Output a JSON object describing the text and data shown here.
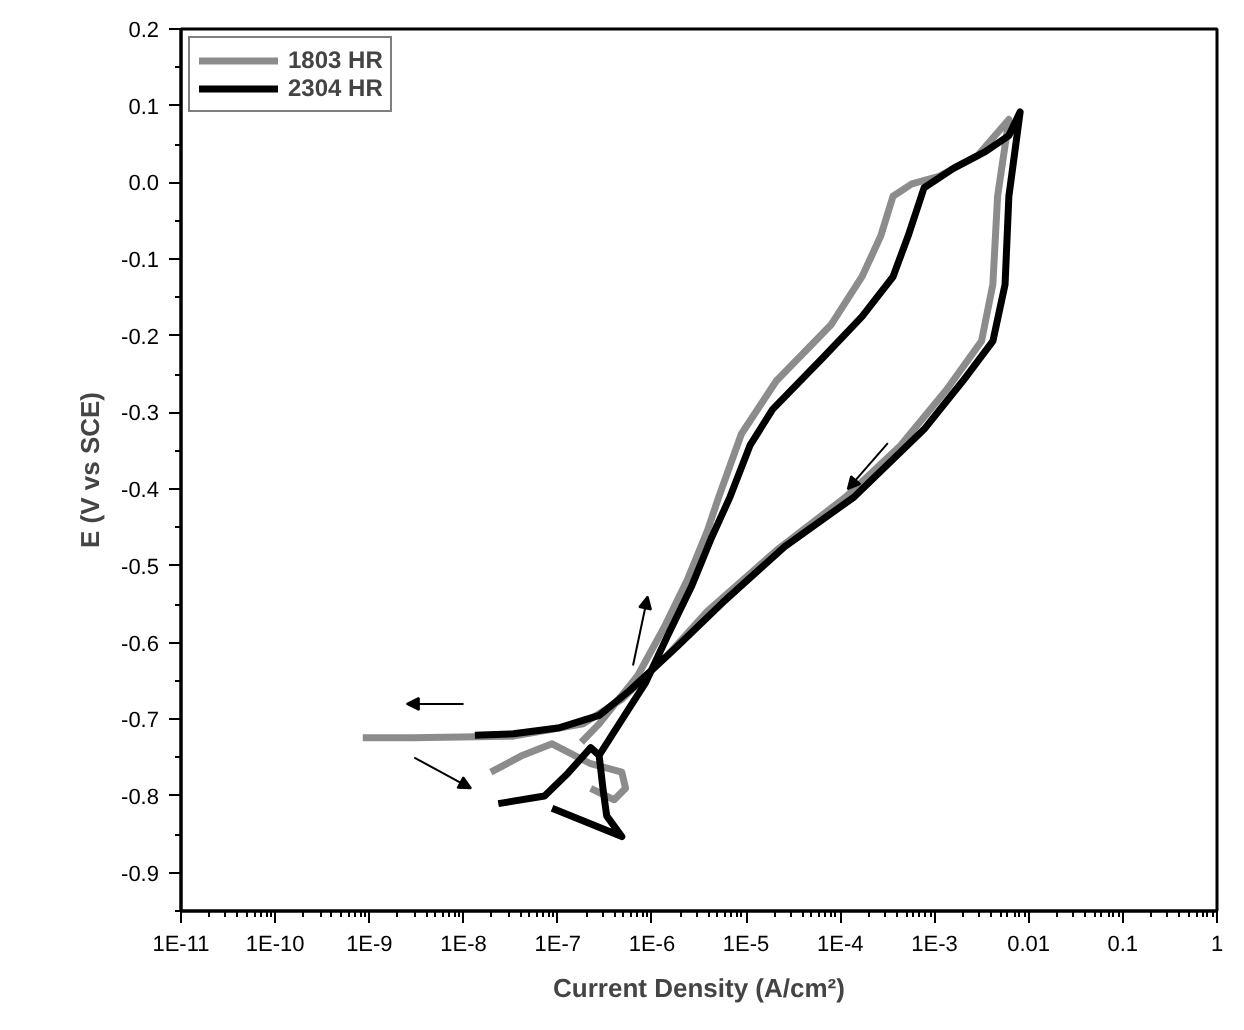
{
  "chart_data": {
    "type": "line",
    "xlabel": "Current Density (A/cm²)",
    "ylabel": "E (V vs SCE)",
    "log": "x",
    "xlim": [
      1e-11,
      1
    ],
    "ylim": [
      -0.95,
      0.2
    ],
    "xticks": [
      {
        "value": 1e-11,
        "label": "1E-11"
      },
      {
        "value": 1e-10,
        "label": "1E-10"
      },
      {
        "value": 1e-09,
        "label": "1E-9"
      },
      {
        "value": 1e-08,
        "label": "1E-8"
      },
      {
        "value": 1e-07,
        "label": "1E-7"
      },
      {
        "value": 1e-06,
        "label": "1E-6"
      },
      {
        "value": 1e-05,
        "label": "1E-5"
      },
      {
        "value": 0.0001,
        "label": "1E-4"
      },
      {
        "value": 0.001,
        "label": "1E-3"
      },
      0.01,
      0.1,
      1
    ],
    "yticks": [
      -0.9,
      -0.8,
      -0.7,
      -0.6,
      -0.5,
      -0.4,
      -0.3,
      -0.2,
      -0.1,
      {
        "value": 0,
        "label": "0.0"
      },
      0.1,
      0.2
    ],
    "grid": false,
    "legend": "top left",
    "marker": "none",
    "line_style": "solid",
    "series": [
      {
        "name": "1803 HR",
        "color": "#8c8c8c",
        "x": [
          1.95e-08,
          4.07e-08,
          8.71e-08,
          2.24e-07,
          4.79e-07,
          5.25e-07,
          3.98e-07,
          2.24e-07,
          null,
          1.78e-07,
          2.75e-07,
          7.08e-07,
          1.35e-06,
          2.4e-06,
          3.89e-06,
          5.13e-06,
          8.91e-06,
          2.09e-05,
          7.94e-05,
          0.00017,
          0.000269,
          0.000363,
          0.000575,
          0.00112,
          0.00288,
          0.00617,
          0.00468,
          0.00417,
          0.00316,
          0.00135,
          0.000437,
          0.000115,
          2.09e-05,
          3.89e-06,
          1.48e-06,
          4.79e-07,
          1.86e-07,
          3.39e-08,
          2.88e-09,
          8.51e-10
        ],
        "values": [
          -0.769,
          -0.748,
          -0.732,
          -0.758,
          -0.769,
          -0.79,
          -0.805,
          -0.79,
          null,
          -0.73,
          -0.706,
          -0.643,
          -0.58,
          -0.517,
          -0.454,
          -0.41,
          -0.328,
          -0.259,
          -0.186,
          -0.123,
          -0.07,
          -0.018,
          -0.002,
          0.008,
          0.035,
          0.082,
          -0.018,
          -0.133,
          -0.207,
          -0.27,
          -0.343,
          -0.41,
          -0.48,
          -0.559,
          -0.616,
          -0.674,
          -0.706,
          -0.722,
          -0.724,
          -0.724
        ]
      },
      {
        "name": "2304 HR",
        "color": "#000000",
        "x": [
          2.34e-08,
          7.24e-08,
          1.29e-07,
          2.24e-07,
          2.75e-07,
          3.02e-07,
          3.31e-07,
          4.79e-07,
          8.71e-08,
          null,
          2.75e-07,
          3.98e-07,
          8.51e-07,
          1.48e-06,
          2.63e-06,
          4.27e-06,
          6.76e-06,
          1.1e-05,
          1.91e-05,
          6.61e-05,
          0.00017,
          0.000363,
          0.000525,
          0.000776,
          0.00162,
          0.00347,
          0.00617,
          0.00813,
          0.00617,
          0.00562,
          0.00417,
          0.002,
          0.000776,
          0.000141,
          2.57e-05,
          5.62e-06,
          1.82e-06,
          5.75e-07,
          2.75e-07,
          1.05e-07,
          3.39e-08,
          1.32e-08
        ],
        "values": [
          -0.81,
          -0.8,
          -0.77,
          -0.737,
          -0.747,
          -0.79,
          -0.826,
          -0.853,
          -0.816,
          null,
          -0.747,
          -0.716,
          -0.653,
          -0.59,
          -0.527,
          -0.464,
          -0.41,
          -0.343,
          -0.296,
          -0.228,
          -0.175,
          -0.123,
          -0.07,
          -0.007,
          0.019,
          0.04,
          0.061,
          0.092,
          -0.018,
          -0.133,
          -0.207,
          -0.259,
          -0.322,
          -0.41,
          -0.475,
          -0.548,
          -0.606,
          -0.663,
          -0.695,
          -0.711,
          -0.719,
          -0.721
        ]
      }
    ]
  }
}
